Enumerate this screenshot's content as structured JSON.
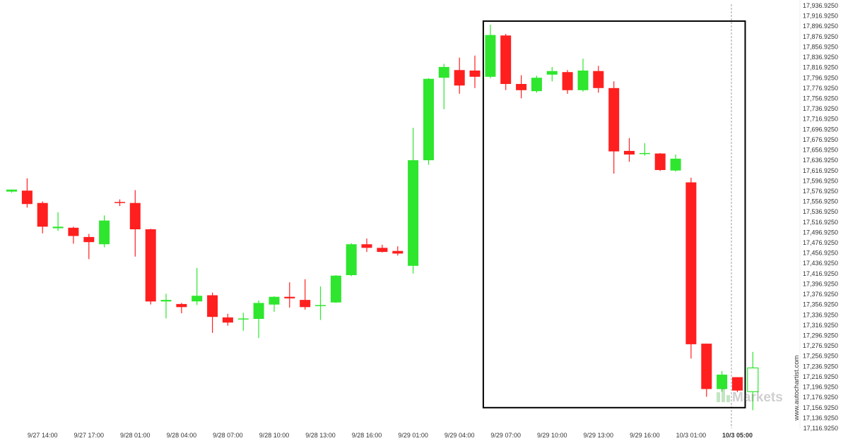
{
  "chart_data": {
    "type": "candlestick",
    "yaxis": {
      "min": 17116.925,
      "max": 17936.925,
      "ticks": [
        "17,936.9250",
        "17,916.9250",
        "17,896.9250",
        "17,876.9250",
        "17,856.9250",
        "17,836.9250",
        "17,816.9250",
        "17,796.9250",
        "17,776.9250",
        "17,756.9250",
        "17,736.9250",
        "17,716.9250",
        "17,696.9250",
        "17,676.9250",
        "17,656.9250",
        "17,636.9250",
        "17,616.9250",
        "17,596.9250",
        "17,576.9250",
        "17,556.9250",
        "17,536.9250",
        "17,516.9250",
        "17,496.9250",
        "17,476.9250",
        "17,456.9250",
        "17,436.9250",
        "17,416.9250",
        "17,396.9250",
        "17,376.9250",
        "17,356.9250",
        "17,336.9250",
        "17,316.9250",
        "17,296.9250",
        "17,276.9250",
        "17,256.9250",
        "17,236.9250",
        "17,216.9250",
        "17,196.9250",
        "17,176.9250",
        "17,156.9250",
        "17,136.9250",
        "17,116.9250"
      ]
    },
    "xaxis": {
      "ticks": [
        {
          "index": 2,
          "label": "9/27 14:00"
        },
        {
          "index": 5,
          "label": "9/27 17:00"
        },
        {
          "index": 8,
          "label": "9/28 01:00"
        },
        {
          "index": 11,
          "label": "9/28 04:00"
        },
        {
          "index": 14,
          "label": "9/28 07:00"
        },
        {
          "index": 17,
          "label": "9/28 10:00"
        },
        {
          "index": 20,
          "label": "9/28 13:00"
        },
        {
          "index": 23,
          "label": "9/28 16:00"
        },
        {
          "index": 26,
          "label": "9/29 01:00"
        },
        {
          "index": 29,
          "label": "9/29 04:00"
        },
        {
          "index": 32,
          "label": "9/29 07:00"
        },
        {
          "index": 35,
          "label": "9/29 10:00"
        },
        {
          "index": 38,
          "label": "9/29 13:00"
        },
        {
          "index": 41,
          "label": "9/29 16:00"
        },
        {
          "index": 44,
          "label": "10/3 01:00"
        },
        {
          "index": 47,
          "label": "10/3 05:00",
          "bold": true
        }
      ]
    },
    "candles": [
      {
        "o": 17576,
        "h": 17580,
        "l": 17574,
        "c": 17580
      },
      {
        "o": 17578,
        "h": 17602,
        "l": 17545,
        "c": 17552
      },
      {
        "o": 17554,
        "h": 17557,
        "l": 17495,
        "c": 17508
      },
      {
        "o": 17505,
        "h": 17536,
        "l": 17500,
        "c": 17508
      },
      {
        "o": 17506,
        "h": 17508,
        "l": 17475,
        "c": 17490
      },
      {
        "o": 17488,
        "h": 17494,
        "l": 17445,
        "c": 17478
      },
      {
        "o": 17474,
        "h": 17530,
        "l": 17468,
        "c": 17520
      },
      {
        "o": 17556,
        "h": 17561,
        "l": 17548,
        "c": 17555
      },
      {
        "o": 17554,
        "h": 17579,
        "l": 17450,
        "c": 17503
      },
      {
        "o": 17503,
        "h": 17504,
        "l": 17357,
        "c": 17363
      },
      {
        "o": 17363,
        "h": 17378,
        "l": 17330,
        "c": 17366
      },
      {
        "o": 17358,
        "h": 17360,
        "l": 17340,
        "c": 17352
      },
      {
        "o": 17363,
        "h": 17428,
        "l": 17356,
        "c": 17374
      },
      {
        "o": 17375,
        "h": 17380,
        "l": 17302,
        "c": 17333
      },
      {
        "o": 17332,
        "h": 17339,
        "l": 17316,
        "c": 17322
      },
      {
        "o": 17329,
        "h": 17341,
        "l": 17306,
        "c": 17330
      },
      {
        "o": 17329,
        "h": 17365,
        "l": 17292,
        "c": 17360
      },
      {
        "o": 17357,
        "h": 17373,
        "l": 17343,
        "c": 17372
      },
      {
        "o": 17372,
        "h": 17400,
        "l": 17351,
        "c": 17369
      },
      {
        "o": 17366,
        "h": 17406,
        "l": 17347,
        "c": 17352
      },
      {
        "o": 17354,
        "h": 17392,
        "l": 17327,
        "c": 17356
      },
      {
        "o": 17361,
        "h": 17414,
        "l": 17360,
        "c": 17413
      },
      {
        "o": 17414,
        "h": 17476,
        "l": 17412,
        "c": 17474
      },
      {
        "o": 17474,
        "h": 17485,
        "l": 17459,
        "c": 17467
      },
      {
        "o": 17467,
        "h": 17473,
        "l": 17458,
        "c": 17459
      },
      {
        "o": 17461,
        "h": 17470,
        "l": 17452,
        "c": 17456
      },
      {
        "o": 17432,
        "h": 17700,
        "l": 17417,
        "c": 17637
      },
      {
        "o": 17637,
        "h": 17796,
        "l": 17628,
        "c": 17795
      },
      {
        "o": 17797,
        "h": 17824,
        "l": 17736,
        "c": 17818
      },
      {
        "o": 17812,
        "h": 17836,
        "l": 17766,
        "c": 17782
      },
      {
        "o": 17811,
        "h": 17840,
        "l": 17777,
        "c": 17799
      },
      {
        "o": 17799,
        "h": 17900,
        "l": 17796,
        "c": 17880
      },
      {
        "o": 17879,
        "h": 17882,
        "l": 17773,
        "c": 17785
      },
      {
        "o": 17785,
        "h": 17802,
        "l": 17757,
        "c": 17773
      },
      {
        "o": 17771,
        "h": 17801,
        "l": 17768,
        "c": 17797
      },
      {
        "o": 17803,
        "h": 17818,
        "l": 17790,
        "c": 17810
      },
      {
        "o": 17808,
        "h": 17812,
        "l": 17766,
        "c": 17773
      },
      {
        "o": 17773,
        "h": 17834,
        "l": 17770,
        "c": 17811
      },
      {
        "o": 17810,
        "h": 17820,
        "l": 17768,
        "c": 17777
      },
      {
        "o": 17777,
        "h": 17790,
        "l": 17611,
        "c": 17654
      },
      {
        "o": 17655,
        "h": 17680,
        "l": 17634,
        "c": 17648
      },
      {
        "o": 17651,
        "h": 17670,
        "l": 17646,
        "c": 17651
      },
      {
        "o": 17650,
        "h": 17651,
        "l": 17616,
        "c": 17618
      },
      {
        "o": 17617,
        "h": 17648,
        "l": 17615,
        "c": 17640
      },
      {
        "o": 17594,
        "h": 17603,
        "l": 17252,
        "c": 17280
      },
      {
        "o": 17281,
        "h": 17281,
        "l": 17178,
        "c": 17193
      },
      {
        "o": 17193,
        "h": 17228,
        "l": 17188,
        "c": 17221
      },
      {
        "o": 17216,
        "h": 17216,
        "l": 17187,
        "c": 17190
      },
      {
        "o": 17188,
        "h": 17265,
        "l": 17152,
        "c": 17234
      }
    ],
    "highlight": {
      "start_index": 31,
      "end_index": 47,
      "high": 17907,
      "low": 17157
    },
    "vline_index": 47,
    "colors": {
      "bull": "#2ee62e",
      "bear": "#ff1f1f",
      "frame": "#000000",
      "text": "#333333",
      "grid": "#e9e9e9",
      "last_open": "#ffffff"
    },
    "last_candle_hollow": true
  },
  "watermark": {
    "side_text": "www.autochartist.com",
    "brand_text": "Markets"
  }
}
